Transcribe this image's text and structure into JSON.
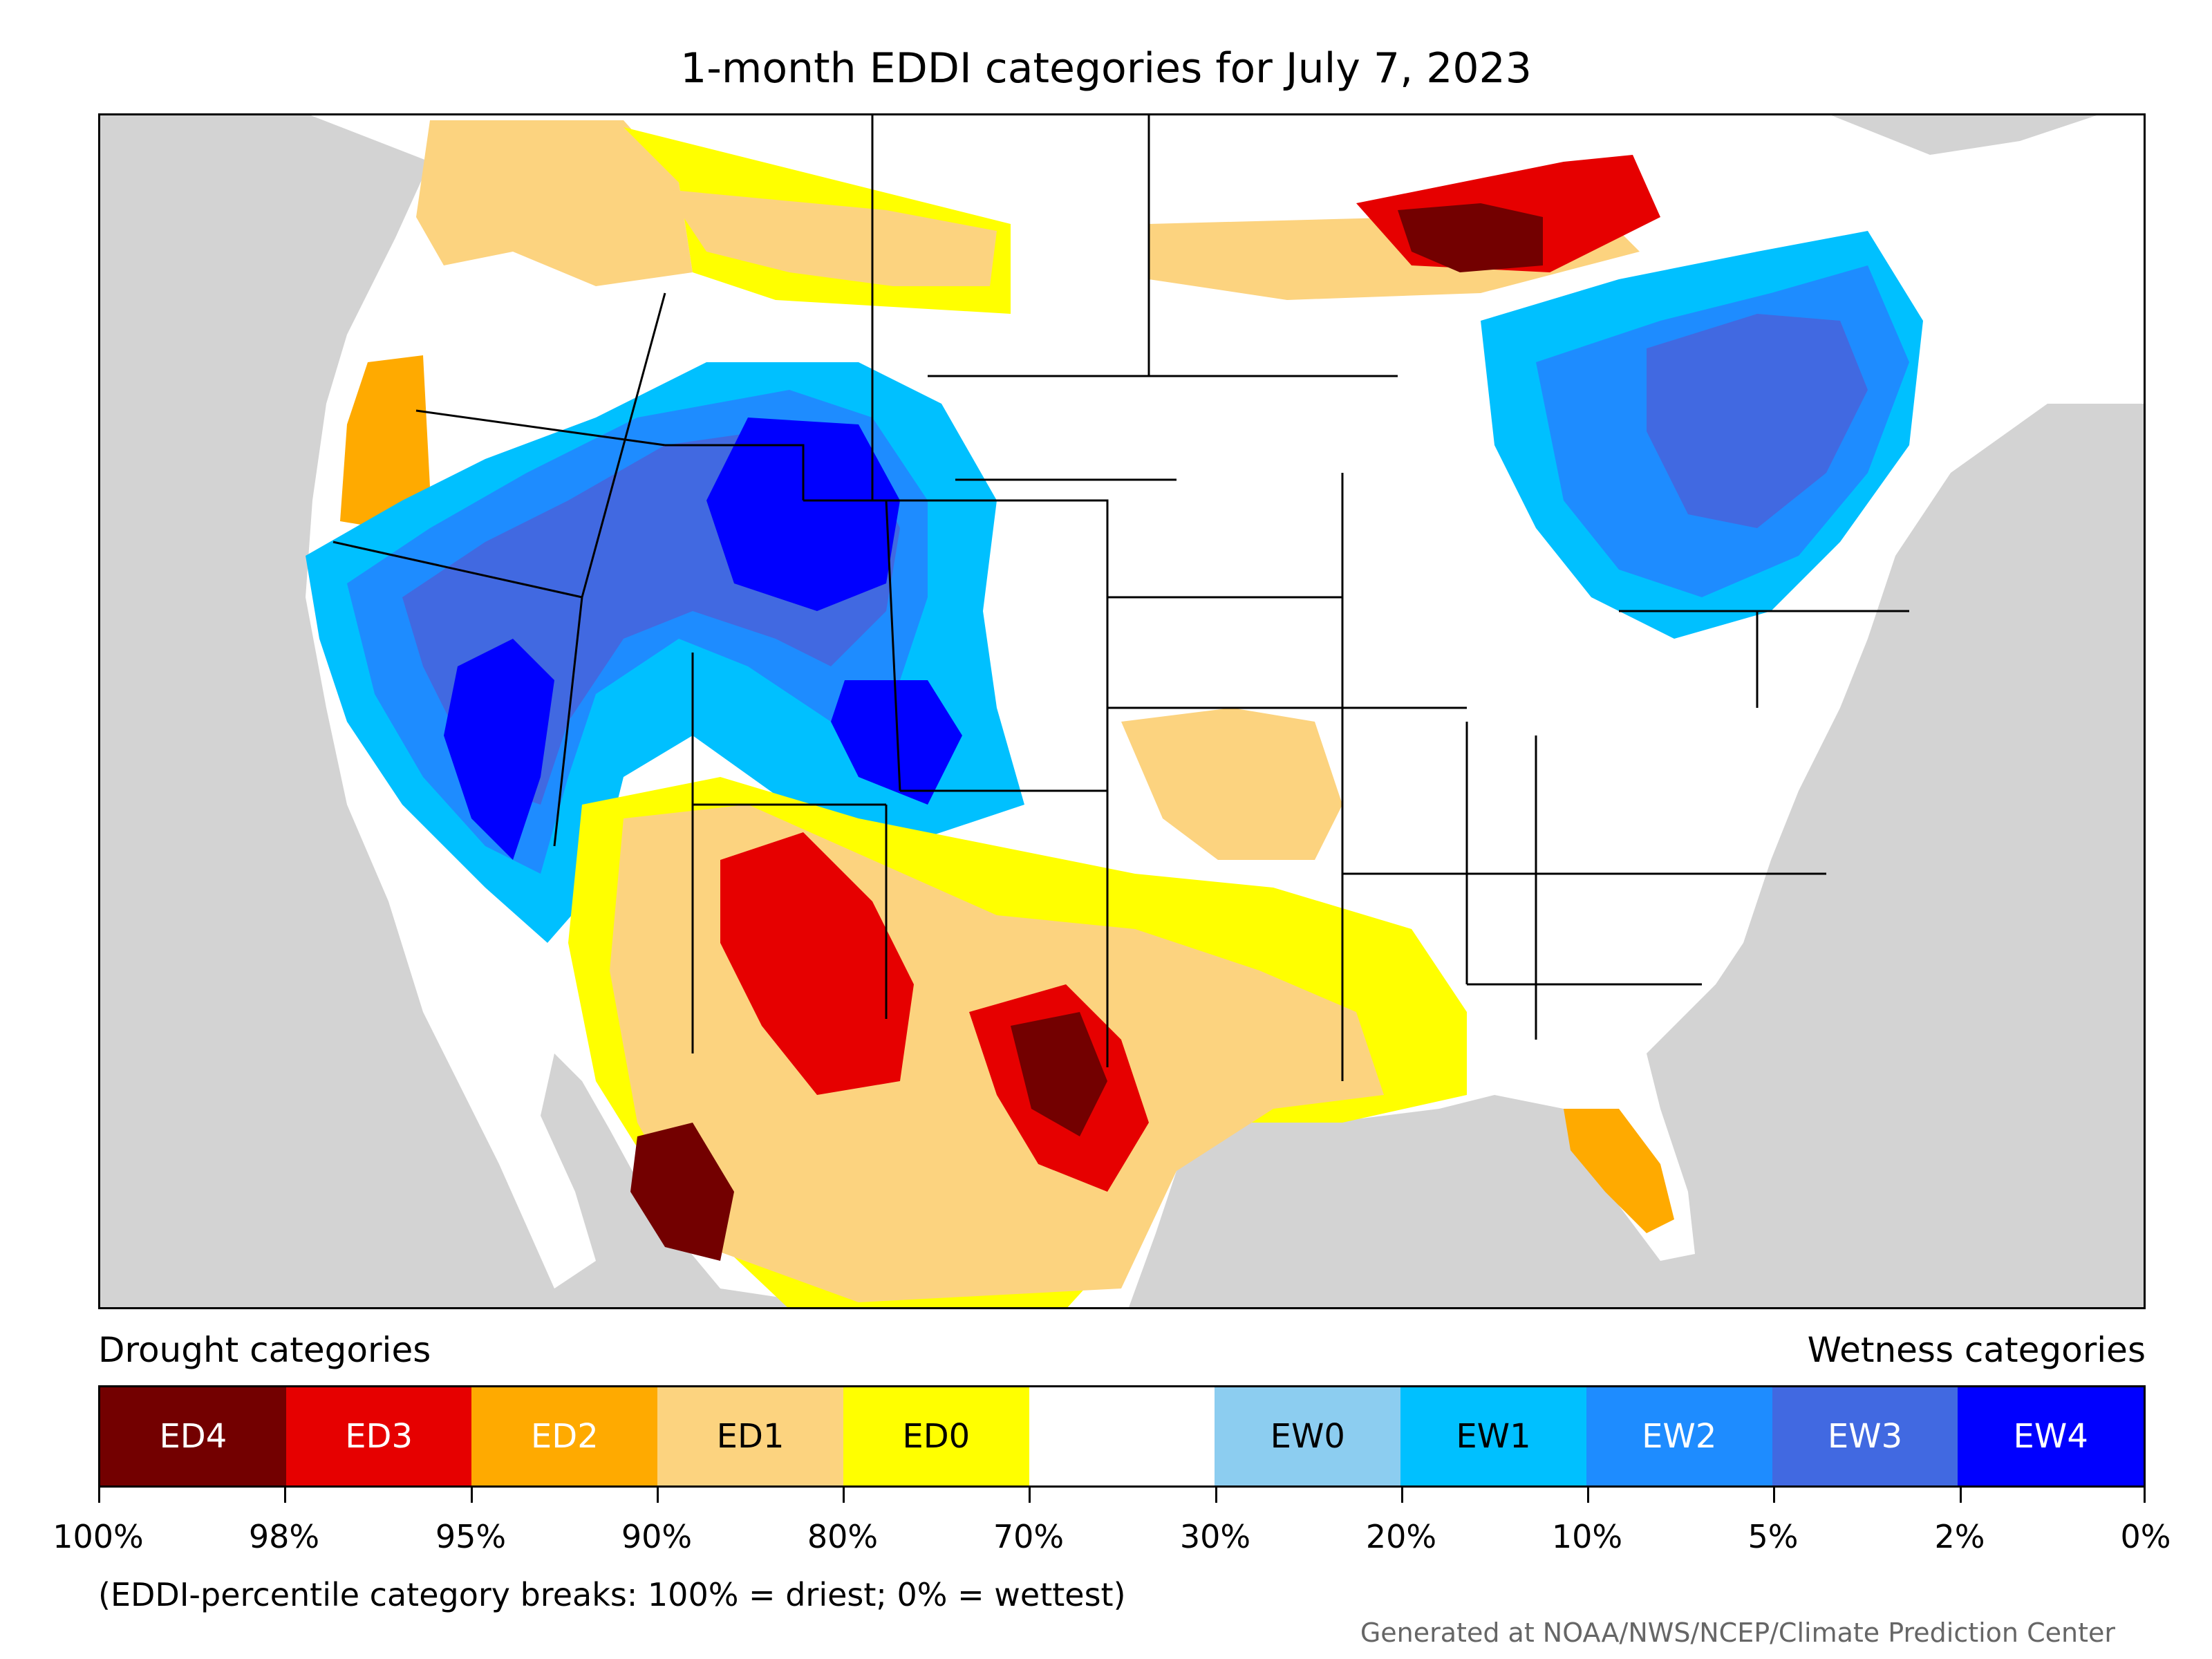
{
  "title": "1-month EDDI categories for July 7, 2023",
  "legend": {
    "drought_label": "Drought categories",
    "wetness_label": "Wetness categories",
    "categories": [
      {
        "code": "ED4",
        "color": "#730000",
        "text_color": "#ffffff"
      },
      {
        "code": "ED3",
        "color": "#e60000",
        "text_color": "#ffffff"
      },
      {
        "code": "ED2",
        "color": "#ffaa00",
        "text_color": "#ffffff"
      },
      {
        "code": "ED1",
        "color": "#fcd37f",
        "text_color": "#000000"
      },
      {
        "code": "ED0",
        "color": "#ffff00",
        "text_color": "#000000"
      },
      {
        "code": "",
        "color": "#ffffff",
        "text_color": "#000000"
      },
      {
        "code": "EW0",
        "color": "#8ccdf0",
        "text_color": "#000000"
      },
      {
        "code": "EW1",
        "color": "#00c0ff",
        "text_color": "#000000"
      },
      {
        "code": "EW2",
        "color": "#1e8cff",
        "text_color": "#ffffff"
      },
      {
        "code": "EW3",
        "color": "#4169e1",
        "text_color": "#ffffff"
      },
      {
        "code": "EW4",
        "color": "#0000ff",
        "text_color": "#ffffff"
      }
    ],
    "breaks": [
      "100%",
      "98%",
      "95%",
      "90%",
      "80%",
      "70%",
      "30%",
      "20%",
      "10%",
      "5%",
      "2%",
      "0%"
    ],
    "note": "(EDDI-percentile category breaks: 100% = driest; 0% = wettest)"
  },
  "credit": "Generated at NOAA/NWS/NCEP/Climate Prediction Center",
  "map": {
    "ocean_color": "#d3d3d3",
    "land_color": "#ffffff",
    "border_color": "#000000",
    "regions": [
      {
        "name": "northwest-ed1",
        "category": "ED1"
      },
      {
        "name": "oregon-coast-ed2",
        "category": "ED2"
      },
      {
        "name": "great-basin-ew1",
        "category": "EW1"
      },
      {
        "name": "wyoming-ew4",
        "category": "EW4"
      },
      {
        "name": "colorado-ew3",
        "category": "EW3"
      },
      {
        "name": "southwest-ed1",
        "category": "ED1"
      },
      {
        "name": "new-mexico-ed3",
        "category": "ED3"
      },
      {
        "name": "texas-ed4",
        "category": "ED4"
      },
      {
        "name": "ontario-ed4",
        "category": "ED4"
      },
      {
        "name": "northeast-ew2",
        "category": "EW2"
      },
      {
        "name": "midwest-ed1",
        "category": "ED1"
      },
      {
        "name": "florida-ed2",
        "category": "ED2"
      }
    ]
  }
}
